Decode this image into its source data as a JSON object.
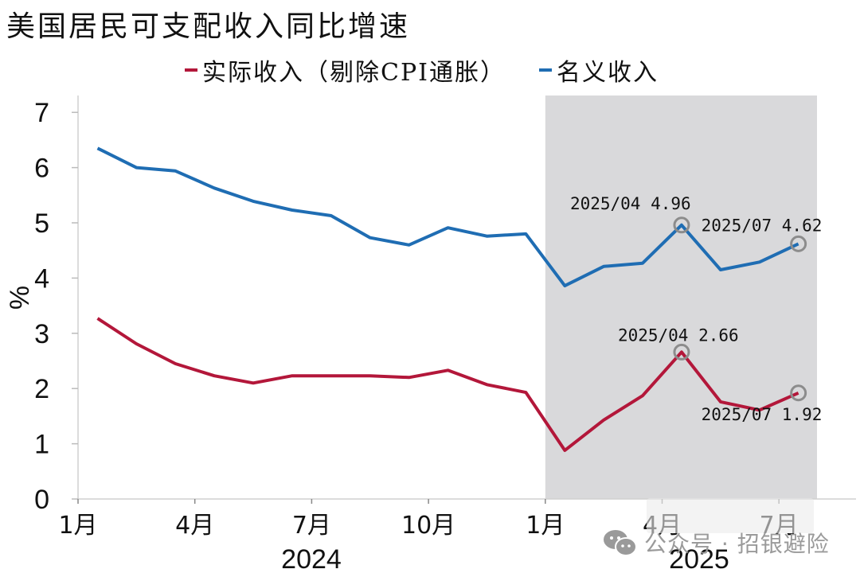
{
  "title": "美国居民可支配收入同比增速",
  "legend": [
    {
      "label": "实际收入（剔除CPI通胀）",
      "color": "#b3173a"
    },
    {
      "label": "名义收入",
      "color": "#1f6db3"
    }
  ],
  "watermark": {
    "text": "公众号 · 招银避险",
    "icon": "wechat-icon"
  },
  "colors": {
    "real": "#b3173a",
    "nominal": "#1f6db3",
    "shade": "#d9d9db",
    "marker": "#8c8c8c"
  },
  "chart_data": {
    "type": "line",
    "title": "美国居民可支配收入同比增速",
    "xlabel": "",
    "ylabel": "%",
    "ylim": [
      0,
      7
    ],
    "yticks": [
      "0",
      "1",
      "2",
      "3",
      "4",
      "5",
      "6",
      "7"
    ],
    "xtick_labels": [
      "1月",
      "4月",
      "7月",
      "10月",
      "1月",
      "4月",
      "7月"
    ],
    "year_labels": [
      "2024",
      "2025"
    ],
    "x": [
      "2024/01",
      "2024/02",
      "2024/03",
      "2024/04",
      "2024/05",
      "2024/06",
      "2024/07",
      "2024/08",
      "2024/09",
      "2024/10",
      "2024/11",
      "2024/12",
      "2025/01",
      "2025/02",
      "2025/03",
      "2025/04",
      "2025/05",
      "2025/06",
      "2025/07"
    ],
    "series": [
      {
        "name": "名义收入",
        "color": "#1f6db3",
        "values": [
          6.35,
          6.0,
          5.94,
          5.63,
          5.39,
          5.23,
          5.13,
          4.73,
          4.6,
          4.91,
          4.76,
          4.8,
          3.86,
          4.21,
          4.27,
          4.96,
          4.15,
          4.29,
          4.62
        ]
      },
      {
        "name": "实际收入（剔除CPI通胀）",
        "color": "#b3173a",
        "values": [
          3.27,
          2.81,
          2.45,
          2.23,
          2.1,
          2.23,
          2.23,
          2.23,
          2.2,
          2.33,
          2.07,
          1.93,
          0.88,
          1.43,
          1.87,
          2.66,
          1.76,
          1.61,
          1.92
        ]
      }
    ],
    "shaded_region": {
      "from": "2025/01",
      "to": "2025/07"
    },
    "annotations": [
      {
        "series": "名义收入",
        "x": "2025/04",
        "value": 4.96,
        "text": "2025/04 4.96"
      },
      {
        "series": "名义收入",
        "x": "2025/07",
        "value": 4.62,
        "text": "2025/07 4.62"
      },
      {
        "series": "实际收入（剔除CPI通胀）",
        "x": "2025/04",
        "value": 2.66,
        "text": "2025/04 2.66"
      },
      {
        "series": "实际收入（剔除CPI通胀）",
        "x": "2025/07",
        "value": 1.92,
        "text": "2025/07 1.92"
      }
    ],
    "grid": false,
    "legend_position": "top"
  }
}
